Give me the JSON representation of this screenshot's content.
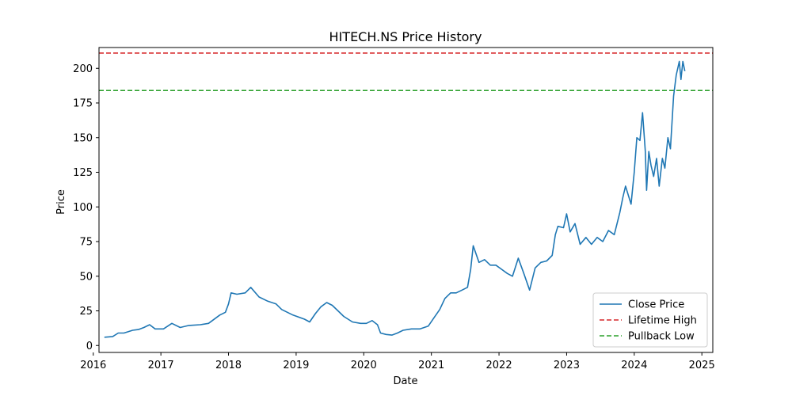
{
  "chart_data": {
    "type": "line",
    "title": "HITECH.NS Price History",
    "xlabel": "Date",
    "ylabel": "Price",
    "x_ticks": [
      "2016",
      "2017",
      "2018",
      "2019",
      "2020",
      "2021",
      "2022",
      "2023",
      "2024",
      "2025"
    ],
    "y_ticks": [
      "0",
      "25",
      "50",
      "75",
      "100",
      "125",
      "150",
      "175",
      "200"
    ],
    "xlim": [
      "2016-02-01",
      "2025-03-01"
    ],
    "ylim": [
      -5,
      215
    ],
    "grid": false,
    "legend_placement": "lower-right",
    "series": [
      {
        "name": "Close Price",
        "color": "#1f77b4",
        "points": [
          [
            "2016-03-01",
            6
          ],
          [
            "2016-04-15",
            6.5
          ],
          [
            "2016-05-15",
            9
          ],
          [
            "2016-06-15",
            9
          ],
          [
            "2016-08-01",
            11
          ],
          [
            "2016-09-01",
            11.5
          ],
          [
            "2016-10-01",
            13
          ],
          [
            "2016-11-01",
            15
          ],
          [
            "2016-12-01",
            12
          ],
          [
            "2017-01-15",
            12
          ],
          [
            "2017-03-01",
            16
          ],
          [
            "2017-04-15",
            13
          ],
          [
            "2017-06-01",
            14.5
          ],
          [
            "2017-08-01",
            15
          ],
          [
            "2017-09-15",
            16
          ],
          [
            "2017-11-15",
            22
          ],
          [
            "2017-12-15",
            24
          ],
          [
            "2018-01-01",
            30
          ],
          [
            "2018-01-15",
            38
          ],
          [
            "2018-02-15",
            37
          ],
          [
            "2018-04-01",
            38
          ],
          [
            "2018-05-01",
            42
          ],
          [
            "2018-06-15",
            35
          ],
          [
            "2018-08-01",
            32
          ],
          [
            "2018-09-15",
            30
          ],
          [
            "2018-10-15",
            26
          ],
          [
            "2018-12-15",
            22
          ],
          [
            "2019-02-15",
            19
          ],
          [
            "2019-03-15",
            17
          ],
          [
            "2019-04-15",
            23
          ],
          [
            "2019-05-15",
            28
          ],
          [
            "2019-06-15",
            31
          ],
          [
            "2019-07-15",
            29
          ],
          [
            "2019-08-15",
            25
          ],
          [
            "2019-09-15",
            21
          ],
          [
            "2019-11-01",
            17
          ],
          [
            "2019-12-15",
            16
          ],
          [
            "2020-01-15",
            16
          ],
          [
            "2020-02-15",
            18
          ],
          [
            "2020-03-15",
            15
          ],
          [
            "2020-04-01",
            9
          ],
          [
            "2020-05-01",
            8
          ],
          [
            "2020-06-01",
            7.5
          ],
          [
            "2020-07-01",
            9
          ],
          [
            "2020-08-01",
            11
          ],
          [
            "2020-09-15",
            12
          ],
          [
            "2020-11-01",
            12
          ],
          [
            "2020-12-15",
            14
          ],
          [
            "2021-01-15",
            20
          ],
          [
            "2021-02-15",
            26
          ],
          [
            "2021-03-15",
            34
          ],
          [
            "2021-04-15",
            38
          ],
          [
            "2021-05-15",
            38
          ],
          [
            "2021-06-15",
            40
          ],
          [
            "2021-07-15",
            42
          ],
          [
            "2021-08-01",
            55
          ],
          [
            "2021-08-15",
            72
          ],
          [
            "2021-09-15",
            60
          ],
          [
            "2021-10-15",
            62
          ],
          [
            "2021-11-15",
            58
          ],
          [
            "2021-12-15",
            58
          ],
          [
            "2022-01-15",
            55
          ],
          [
            "2022-02-15",
            52
          ],
          [
            "2022-03-15",
            50
          ],
          [
            "2022-04-15",
            63
          ],
          [
            "2022-05-15",
            52
          ],
          [
            "2022-06-15",
            40
          ],
          [
            "2022-07-15",
            56
          ],
          [
            "2022-08-15",
            60
          ],
          [
            "2022-09-15",
            61
          ],
          [
            "2022-10-15",
            65
          ],
          [
            "2022-11-01",
            80
          ],
          [
            "2022-11-15",
            86
          ],
          [
            "2022-12-15",
            85
          ],
          [
            "2023-01-01",
            95
          ],
          [
            "2023-01-20",
            82
          ],
          [
            "2023-02-15",
            88
          ],
          [
            "2023-03-15",
            73
          ],
          [
            "2023-04-15",
            78
          ],
          [
            "2023-05-15",
            73
          ],
          [
            "2023-06-15",
            78
          ],
          [
            "2023-07-15",
            75
          ],
          [
            "2023-08-15",
            83
          ],
          [
            "2023-09-15",
            80
          ],
          [
            "2023-10-15",
            96
          ],
          [
            "2023-11-01",
            107
          ],
          [
            "2023-11-15",
            115
          ],
          [
            "2023-12-15",
            102
          ],
          [
            "2024-01-01",
            125
          ],
          [
            "2024-01-15",
            150
          ],
          [
            "2024-02-01",
            148
          ],
          [
            "2024-02-15",
            168
          ],
          [
            "2024-03-01",
            140
          ],
          [
            "2024-03-08",
            112
          ],
          [
            "2024-03-20",
            140
          ],
          [
            "2024-04-01",
            130
          ],
          [
            "2024-04-15",
            122
          ],
          [
            "2024-05-01",
            135
          ],
          [
            "2024-05-15",
            115
          ],
          [
            "2024-06-01",
            135
          ],
          [
            "2024-06-15",
            128
          ],
          [
            "2024-07-01",
            150
          ],
          [
            "2024-07-15",
            142
          ],
          [
            "2024-08-01",
            180
          ],
          [
            "2024-08-15",
            195
          ],
          [
            "2024-09-01",
            205
          ],
          [
            "2024-09-10",
            192
          ],
          [
            "2024-09-20",
            205
          ],
          [
            "2024-10-01",
            198
          ]
        ]
      }
    ],
    "reference_lines": [
      {
        "name": "Lifetime High",
        "value": 211,
        "color": "#d62728",
        "style": "dashed"
      },
      {
        "name": "Pullback Low",
        "value": 184,
        "color": "#2ca02c",
        "style": "dashed"
      }
    ]
  }
}
